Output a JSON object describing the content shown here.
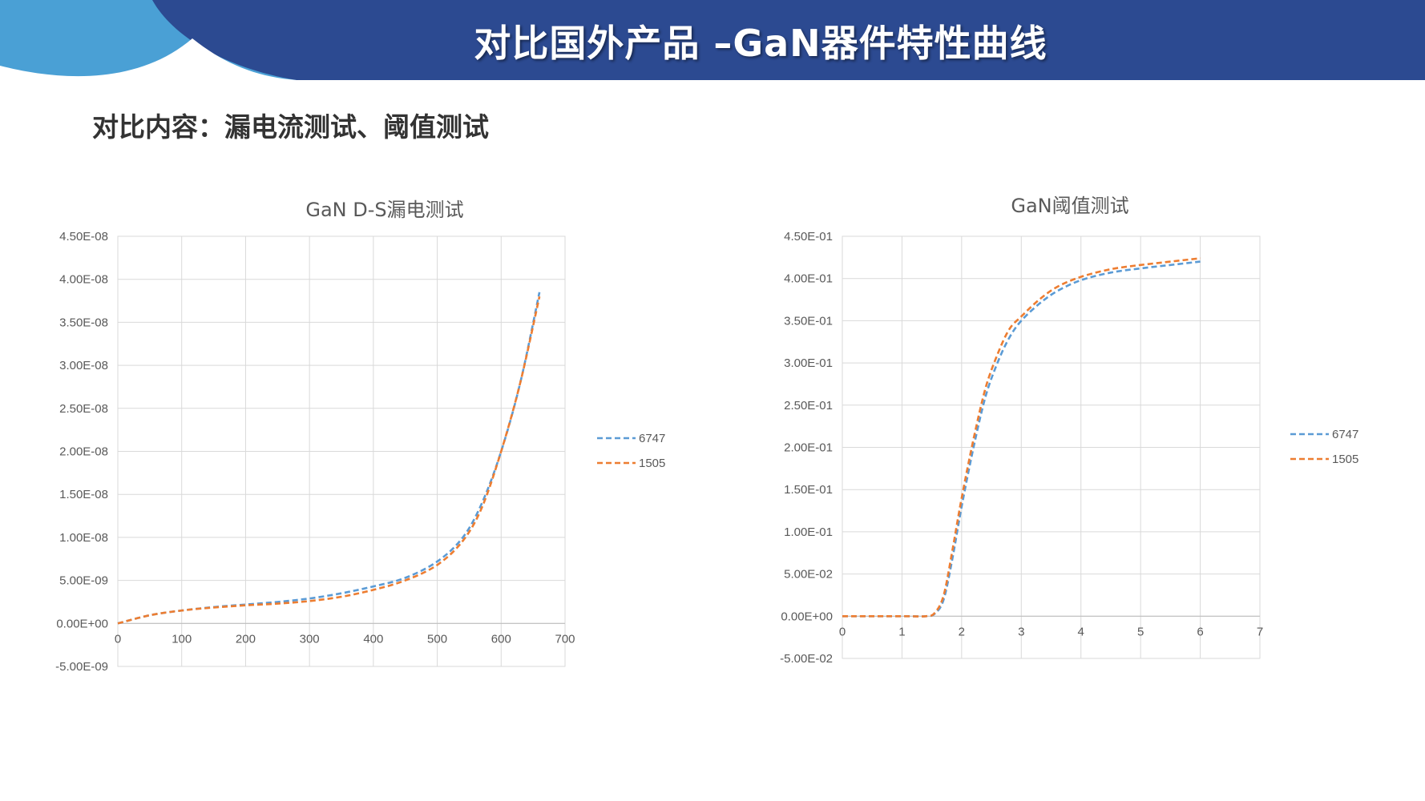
{
  "header": {
    "title": "对比国外产品 –GaN器件特性曲线",
    "accent_color": "#2c4a91",
    "corner_color": "#4aa0d5"
  },
  "subtitle": "对比内容：漏电流测试、阈值测试",
  "colors": {
    "series_a": "#5b9bd5",
    "series_b": "#ed7d31",
    "grid": "#d9d9d9",
    "text": "#595959"
  },
  "chart_data": [
    {
      "type": "line",
      "title": "GaN D-S漏电测试",
      "xlabel": "",
      "ylabel": "",
      "xlim": [
        0,
        700
      ],
      "ylim": [
        -5e-09,
        4.5e-08
      ],
      "x_ticks": [
        "0",
        "100",
        "200",
        "300",
        "400",
        "500",
        "600",
        "700"
      ],
      "y_ticks": [
        "4.50E-08",
        "4.00E-08",
        "3.50E-08",
        "3.00E-08",
        "2.50E-08",
        "2.00E-08",
        "1.50E-08",
        "1.00E-08",
        "5.00E-09",
        "0.00E+00",
        "-5.00E-09"
      ],
      "grid": true,
      "legend": "right",
      "series": [
        {
          "name": "6747",
          "x": [
            0,
            50,
            100,
            150,
            200,
            250,
            300,
            350,
            400,
            450,
            500,
            540,
            570,
            600,
            630,
            660
          ],
          "y": [
            0,
            9.5e-10,
            1.5e-09,
            1.9e-09,
            2.2e-09,
            2.5e-09,
            2.9e-09,
            3.5e-09,
            4.3e-09,
            5.3e-09,
            7.2e-09,
            1e-08,
            1.4e-08,
            2e-08,
            2.8e-08,
            3.85e-08
          ]
        },
        {
          "name": "1505",
          "x": [
            0,
            50,
            100,
            150,
            200,
            250,
            300,
            350,
            400,
            450,
            500,
            540,
            570,
            600,
            630,
            660
          ],
          "y": [
            0,
            9.5e-10,
            1.5e-09,
            1.85e-09,
            2.1e-09,
            2.3e-09,
            2.6e-09,
            3.1e-09,
            3.9e-09,
            5e-09,
            6.8e-09,
            9.6e-09,
            1.35e-08,
            2e-08,
            2.8e-08,
            3.8e-08
          ]
        }
      ]
    },
    {
      "type": "line",
      "title": "GaN阈值测试",
      "xlabel": "",
      "ylabel": "",
      "xlim": [
        0,
        7
      ],
      "ylim": [
        -0.05,
        0.45
      ],
      "x_ticks": [
        "0",
        "1",
        "2",
        "3",
        "4",
        "5",
        "6",
        "7"
      ],
      "y_ticks": [
        "4.50E-01",
        "4.00E-01",
        "3.50E-01",
        "3.00E-01",
        "2.50E-01",
        "2.00E-01",
        "1.50E-01",
        "1.00E-01",
        "5.00E-02",
        "0.00E+00",
        "-5.00E-02"
      ],
      "grid": true,
      "legend": "right",
      "series": [
        {
          "name": "6747",
          "x": [
            0,
            1.0,
            1.4,
            1.55,
            1.7,
            1.85,
            2.0,
            2.2,
            2.4,
            2.6,
            2.8,
            3.0,
            3.3,
            3.6,
            4.0,
            4.5,
            5.0,
            5.5,
            6.0
          ],
          "y": [
            0,
            0,
            0,
            0.003,
            0.02,
            0.07,
            0.13,
            0.2,
            0.26,
            0.3,
            0.33,
            0.35,
            0.37,
            0.385,
            0.398,
            0.407,
            0.412,
            0.416,
            0.42
          ]
        },
        {
          "name": "1505",
          "x": [
            0,
            1.0,
            1.4,
            1.55,
            1.7,
            1.85,
            2.0,
            2.2,
            2.4,
            2.6,
            2.8,
            3.0,
            3.3,
            3.6,
            4.0,
            4.5,
            5.0,
            5.5,
            6.0
          ],
          "y": [
            0,
            0,
            0,
            0.004,
            0.025,
            0.08,
            0.14,
            0.21,
            0.27,
            0.31,
            0.34,
            0.355,
            0.375,
            0.39,
            0.402,
            0.411,
            0.416,
            0.42,
            0.424
          ]
        }
      ]
    }
  ]
}
